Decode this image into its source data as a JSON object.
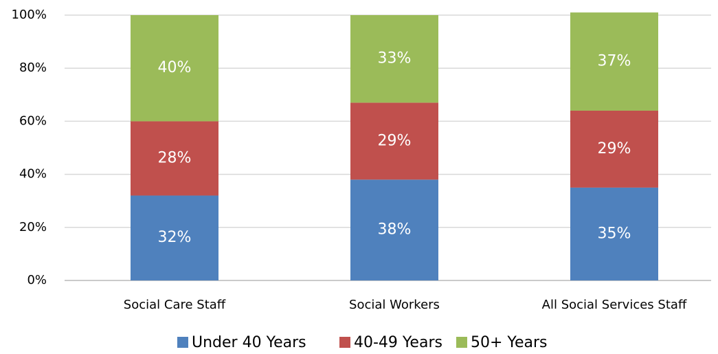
{
  "chart_data": {
    "type": "stacked_bar",
    "categories": [
      "Social Care Staff",
      "Social Workers",
      "All Social Services Staff"
    ],
    "series": [
      {
        "name": "Under 40 Years",
        "color": "#4f81bd",
        "values": [
          32,
          38,
          35
        ],
        "value_labels": [
          "32%",
          "38%",
          "35%"
        ]
      },
      {
        "name": "40-49 Years",
        "color": "#c0504d",
        "values": [
          28,
          29,
          29
        ],
        "value_labels": [
          "28%",
          "29%",
          "29%"
        ]
      },
      {
        "name": "50+ Years",
        "color": "#9bbb59",
        "values": [
          40,
          33,
          37
        ],
        "value_labels": [
          "40%",
          "33%",
          "37%"
        ]
      }
    ],
    "ylim": [
      0,
      100
    ],
    "yticks": [
      {
        "value": 0,
        "label": "0%"
      },
      {
        "value": 20,
        "label": "20%"
      },
      {
        "value": 40,
        "label": "40%"
      },
      {
        "value": 60,
        "label": "60%"
      },
      {
        "value": 80,
        "label": "80%"
      },
      {
        "value": 100,
        "label": "100%"
      }
    ],
    "grid": true,
    "legend": "bottom"
  }
}
